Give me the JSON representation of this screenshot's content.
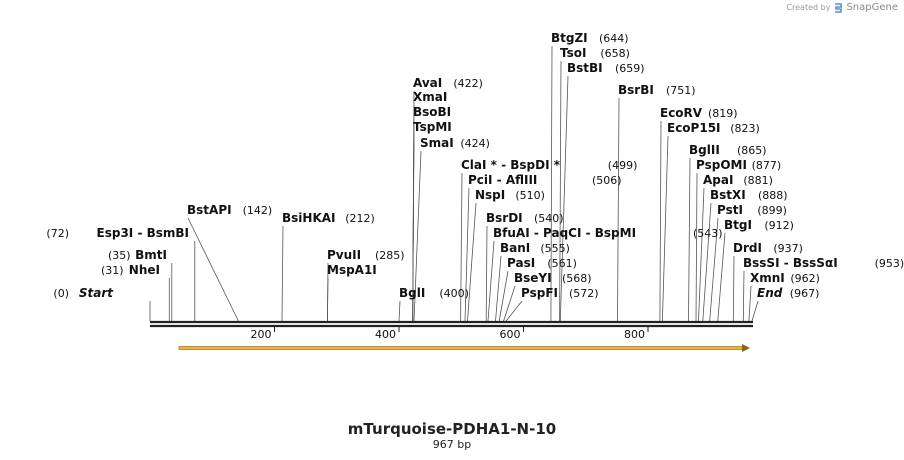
{
  "brand": {
    "prefix": "Created by",
    "name": "SnapGene"
  },
  "map": {
    "title": "mTurquoise-PDHA1-N-10",
    "length_label": "967 bp",
    "length_bp": 967,
    "colors": {
      "backbone": "#222222",
      "feature": "#f2b134",
      "feature_edge": "#8a6414"
    },
    "feature": {
      "start": 50,
      "end": 967,
      "direction": "forward"
    },
    "ticks": [
      {
        "bp": 200,
        "label": "200"
      },
      {
        "bp": 400,
        "label": "400"
      },
      {
        "bp": 600,
        "label": "600"
      },
      {
        "bp": 800,
        "label": "800"
      }
    ],
    "sites": [
      {
        "names": [
          "Start"
        ],
        "pos": "(0)",
        "bp": 0,
        "italic": true
      },
      {
        "names": [
          "NheI"
        ],
        "pos": "(31)",
        "bp": 31
      },
      {
        "names": [
          "BmtI"
        ],
        "pos": "(35)",
        "bp": 35
      },
      {
        "names": [
          "Esp3I",
          "BsmBI"
        ],
        "pos": "(72)",
        "bp": 72
      },
      {
        "names": [
          "BstAPI"
        ],
        "pos": "(142)",
        "bp": 142
      },
      {
        "names": [
          "BsiHKAI"
        ],
        "pos": "(212)",
        "bp": 212
      },
      {
        "names": [
          "PvuII"
        ],
        "pos": "(285)",
        "bp": 285
      },
      {
        "names": [
          "MspA1I"
        ],
        "pos": "",
        "bp": 285
      },
      {
        "names": [
          "BglI"
        ],
        "pos": "(400)",
        "bp": 400
      },
      {
        "names": [
          "AvaI"
        ],
        "pos": "(422)",
        "bp": 422
      },
      {
        "names": [
          "XmaI"
        ],
        "pos": "",
        "bp": 422
      },
      {
        "names": [
          "BsoBI"
        ],
        "pos": "",
        "bp": 422
      },
      {
        "names": [
          "TspMI"
        ],
        "pos": "",
        "bp": 422
      },
      {
        "names": [
          "SmaI"
        ],
        "pos": "(424)",
        "bp": 424
      },
      {
        "names": [
          "ClaI *",
          "BspDI *"
        ],
        "pos": "(499)",
        "bp": 499
      },
      {
        "names": [
          "PciI",
          "AflIII"
        ],
        "pos": "(506)",
        "bp": 506
      },
      {
        "names": [
          "NspI"
        ],
        "pos": "(510)",
        "bp": 510
      },
      {
        "names": [
          "BsrDI"
        ],
        "pos": "(540)",
        "bp": 540
      },
      {
        "names": [
          "BfuAI",
          "PaqCI",
          "BspMI"
        ],
        "pos": "(543)",
        "bp": 543
      },
      {
        "names": [
          "BanI"
        ],
        "pos": "(555)",
        "bp": 555
      },
      {
        "names": [
          "PasI"
        ],
        "pos": "(561)",
        "bp": 561
      },
      {
        "names": [
          "BseYI"
        ],
        "pos": "(568)",
        "bp": 568
      },
      {
        "names": [
          "PspFI"
        ],
        "pos": "(572)",
        "bp": 572
      },
      {
        "names": [
          "BtgZI"
        ],
        "pos": "(644)",
        "bp": 644
      },
      {
        "names": [
          "TsoI"
        ],
        "pos": "(658)",
        "bp": 658
      },
      {
        "names": [
          "BstBI"
        ],
        "pos": "(659)",
        "bp": 659
      },
      {
        "names": [
          "BsrBI"
        ],
        "pos": "(751)",
        "bp": 751
      },
      {
        "names": [
          "EcoRV"
        ],
        "pos": "(819)",
        "bp": 819
      },
      {
        "names": [
          "EcoP15I"
        ],
        "pos": "(823)",
        "bp": 823
      },
      {
        "names": [
          "BglII"
        ],
        "pos": "(865)",
        "bp": 865
      },
      {
        "names": [
          "PspOMI"
        ],
        "pos": "(877)",
        "bp": 877
      },
      {
        "names": [
          "ApaI"
        ],
        "pos": "(881)",
        "bp": 881
      },
      {
        "names": [
          "BstXI"
        ],
        "pos": "(888)",
        "bp": 888
      },
      {
        "names": [
          "PstI"
        ],
        "pos": "(899)",
        "bp": 899
      },
      {
        "names": [
          "BtgI"
        ],
        "pos": "(912)",
        "bp": 912
      },
      {
        "names": [
          "DrdI"
        ],
        "pos": "(937)",
        "bp": 937
      },
      {
        "names": [
          "BssSI",
          "BssSαI"
        ],
        "pos": "(953)",
        "bp": 953
      },
      {
        "names": [
          "XmnI"
        ],
        "pos": "(962)",
        "bp": 962
      },
      {
        "names": [
          "End"
        ],
        "pos": "(967)",
        "bp": 967,
        "italic": true
      }
    ]
  }
}
